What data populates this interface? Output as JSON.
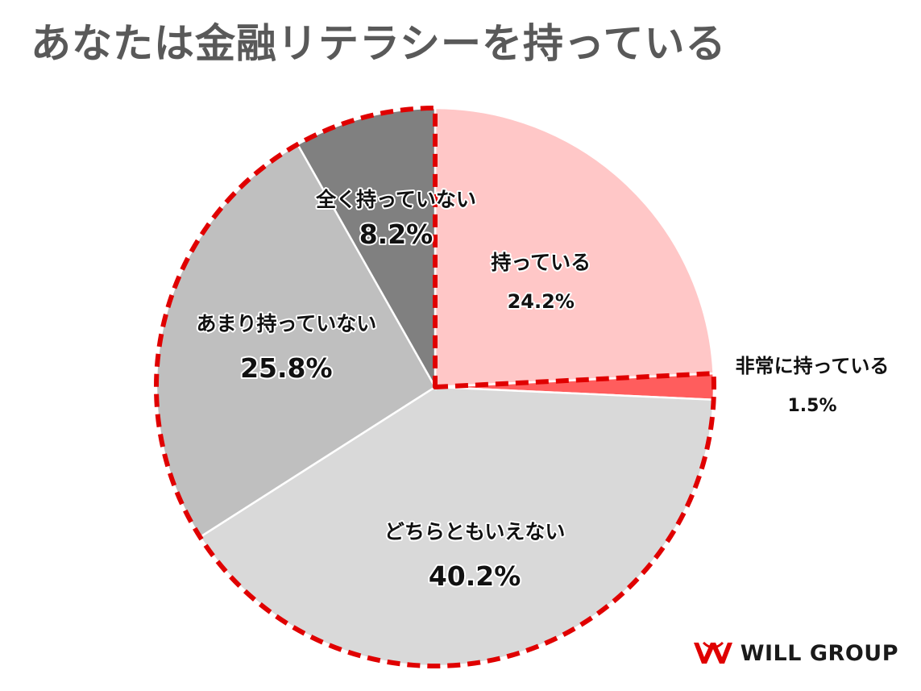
{
  "title": "あなたは金融リテラシーを持っている",
  "chart_data": {
    "type": "pie",
    "title": "あなたは金融リテラシーを持っている",
    "start_angle_deg": 0,
    "direction": "clockwise",
    "slices": [
      {
        "label": "持っている",
        "value": 24.2,
        "value_label": "24.2%",
        "color": "#ffc7c7"
      },
      {
        "label": "非常に持っている",
        "value": 1.5,
        "value_label": "1.5%",
        "color": "#ff5d5d"
      },
      {
        "label": "どちらともいえない",
        "value": 40.2,
        "value_label": "40.2%",
        "color": "#d9d9d9"
      },
      {
        "label": "あまり持っていない",
        "value": 25.8,
        "value_label": "25.8%",
        "color": "#bfbfbf"
      },
      {
        "label": "全く持っていない",
        "value": 8.2,
        "value_label": "8.2%",
        "color": "#808080"
      }
    ],
    "highlight": {
      "slices": [
        "非常に持っている",
        "どちらともいえない",
        "あまり持っていない",
        "全く持っていない"
      ],
      "style": "red dashed outline",
      "color": "#e00000"
    }
  },
  "logo": {
    "text": "WILL GROUP",
    "mark_color": "#e00000"
  }
}
